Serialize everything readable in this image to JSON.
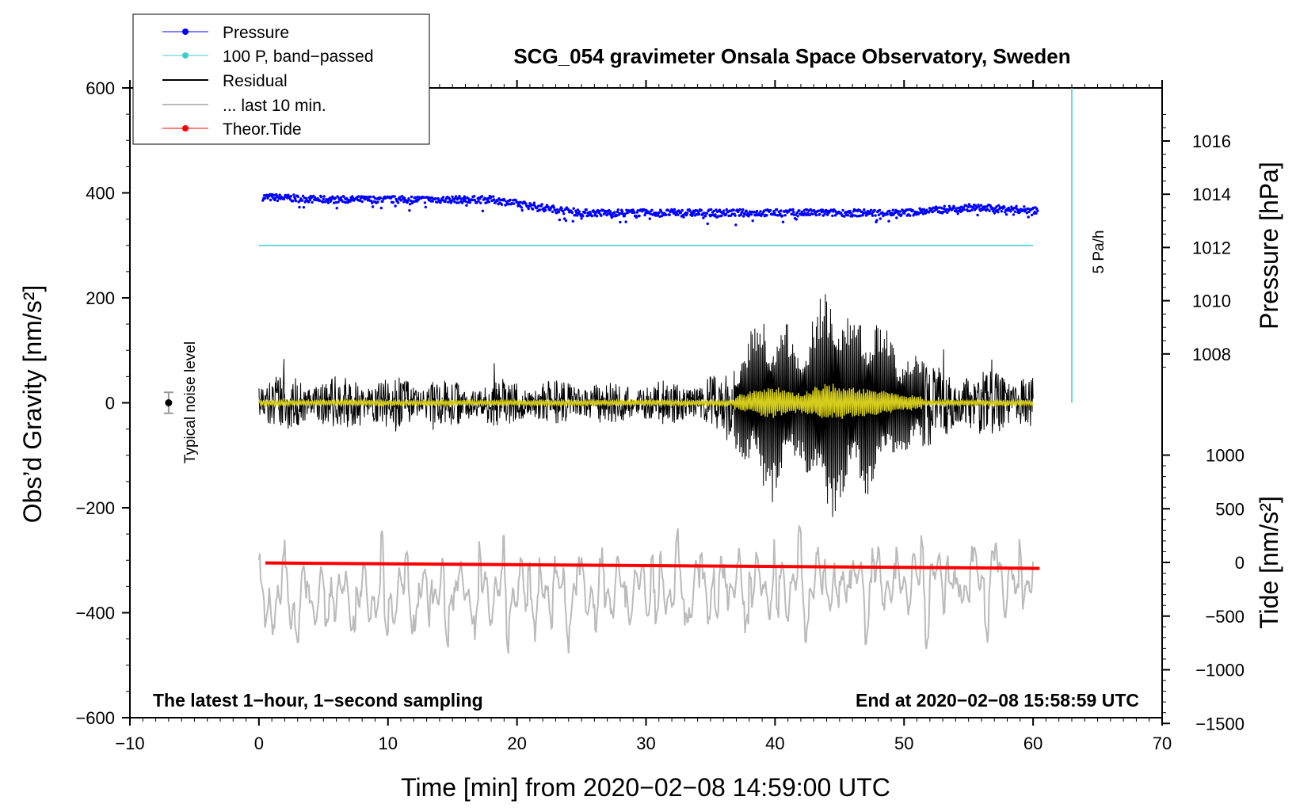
{
  "chart_data": {
    "type": "line",
    "title": "SCG_054 gravimeter Onsala Space Observatory, Sweden",
    "xlabel": "Time [min] from 2020−02−08 14:59:00 UTC",
    "ylabel_left": "Obs’d Gravity [nm/s²]",
    "ylabel_pressure": "Pressure [hPa]",
    "ylabel_tide": "Tide [nm/s²]",
    "xlim": [
      -10,
      70
    ],
    "ylim": [
      -600,
      600
    ],
    "x_ticks": [
      "−10",
      "0",
      "10",
      "20",
      "30",
      "40",
      "50",
      "60",
      "70"
    ],
    "y_ticks": [
      "600",
      "400",
      "200",
      "0",
      "−200",
      "−400",
      "−600"
    ],
    "pressure_ticks": [
      "1016",
      "1014",
      "1012",
      "1010",
      "1008"
    ],
    "tide_ticks": [
      "1000",
      "500",
      "0",
      "−500",
      "−1000",
      "−1500"
    ],
    "legend": [
      "Pressure",
      "100 P, band−passed",
      "Residual",
      "... last 10 min.",
      "Theor.Tide"
    ],
    "footer_left": "The latest 1−hour, 1−second sampling",
    "footer_right": "End at 2020−02−08 15:58:59 UTC",
    "noise_label": "Typical noise level",
    "scale_label": "5 Pa/h",
    "series": [
      {
        "name": "Pressure",
        "unit": "hPa",
        "x": [
          0,
          5,
          10,
          15,
          18,
          22,
          25,
          30,
          35,
          40,
          45,
          50,
          55,
          60
        ],
        "values": [
          1013.9,
          1013.8,
          1013.8,
          1013.8,
          1013.8,
          1013.5,
          1013.3,
          1013.3,
          1013.3,
          1013.3,
          1013.3,
          1013.3,
          1013.5,
          1013.4
        ]
      },
      {
        "name": "100 P, band−passed",
        "unit": "nm/s²",
        "x": [
          0,
          60
        ],
        "values": [
          300,
          300
        ]
      },
      {
        "name": "Residual",
        "unit": "nm/s²",
        "x": [
          0,
          10,
          20,
          30,
          36,
          39.5,
          42,
          44,
          46,
          48,
          50,
          55,
          60
        ],
        "amplitude": [
          55,
          50,
          45,
          40,
          55,
          200,
          120,
          250,
          190,
          170,
          100,
          65,
          60
        ]
      },
      {
        "name": "... last 10 min.",
        "unit": "nm/s²",
        "x": [
          0,
          60
        ],
        "values": [
          -375,
          -335
        ]
      },
      {
        "name": "Theor.Tide",
        "unit": "nm/s²",
        "x": [
          0,
          60
        ],
        "values": [
          -5,
          -55
        ]
      }
    ],
    "colors": {
      "pressure": "#0000ff",
      "bandpass": "#40cccc",
      "residual": "#000000",
      "last10": "#bbbbbb",
      "tide": "#ff0000",
      "filtered": "#d4cc1c"
    }
  }
}
